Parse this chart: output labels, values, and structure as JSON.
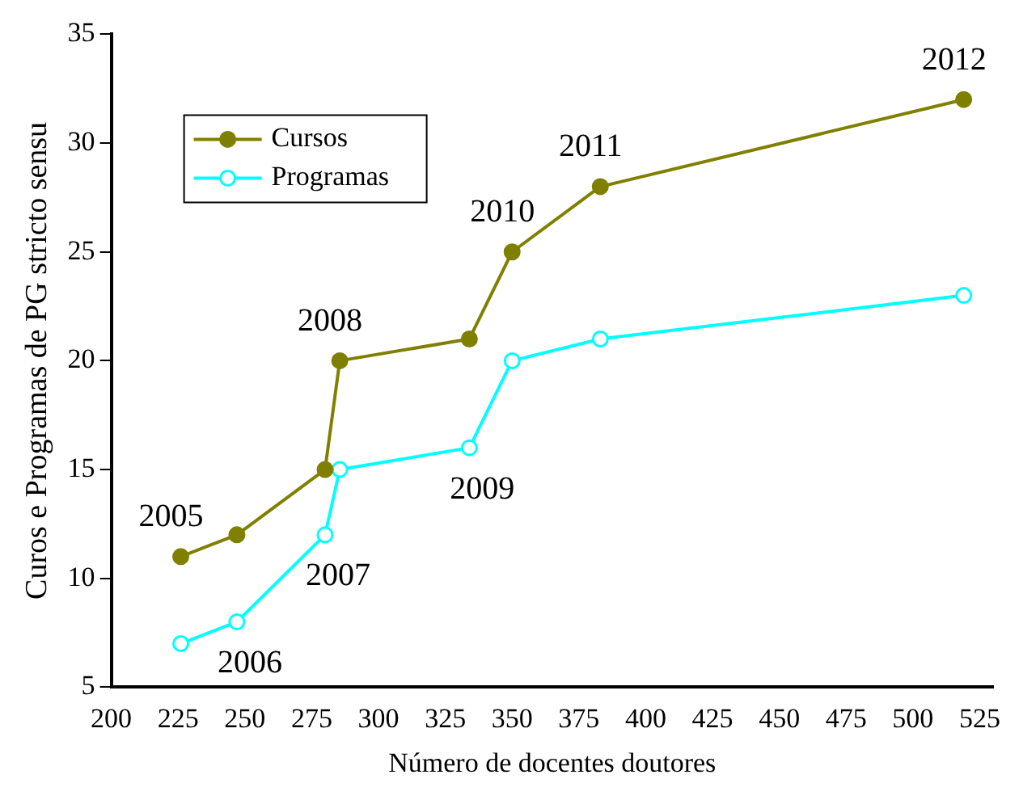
{
  "chart_data": {
    "type": "line",
    "xlabel": "Número de docentes doutores",
    "ylabel": "Curos e Programas de PG stricto sensu",
    "series": [
      {
        "name": "Cursos",
        "color": "#808000",
        "x": [
          226,
          247,
          280,
          285.5,
          334,
          350,
          383,
          519
        ],
        "values": [
          11,
          12,
          15,
          20,
          21,
          25,
          28,
          32
        ]
      },
      {
        "name": "Programas",
        "color": "#00ffff",
        "x": [
          226,
          247,
          280,
          285.5,
          334,
          350,
          383,
          519
        ],
        "values": [
          7,
          8,
          12,
          15,
          16,
          20,
          21,
          23
        ]
      }
    ],
    "xlim": [
      200,
      530
    ],
    "xticks": [
      200,
      225,
      250,
      275,
      300,
      325,
      350,
      375,
      400,
      425,
      450,
      475,
      500,
      525
    ],
    "ylim": [
      5,
      35
    ],
    "yticks": [
      5,
      10,
      15,
      20,
      25,
      30,
      35
    ],
    "annotations": [
      {
        "text": "2005",
        "x": 226,
        "y": 11
      },
      {
        "text": "2006",
        "x": 247,
        "y": 8
      },
      {
        "text": "2007",
        "x": 280,
        "y": 12
      },
      {
        "text": "2008",
        "x": 285.5,
        "y": 20
      },
      {
        "text": "2009",
        "x": 334,
        "y": 16
      },
      {
        "text": "2010",
        "x": 350,
        "y": 25
      },
      {
        "text": "2011",
        "x": 383,
        "y": 28
      },
      {
        "text": "2012",
        "x": 519,
        "y": 32
      }
    ],
    "grid": false,
    "legend": "top left",
    "marker": "circle",
    "line_style": "solid"
  }
}
